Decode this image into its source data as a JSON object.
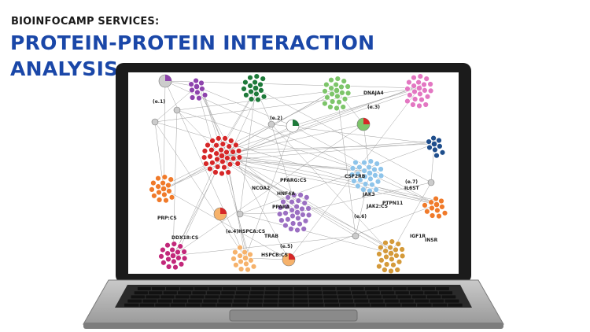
{
  "header": {
    "kicker": "BIOINFOCAMP SERVICES:",
    "title_line1": "PROTEIN-PROTEIN INTERACTION",
    "title_line2": "ANALYSIS"
  },
  "network_labels": {
    "dnaja4": "DNAJA4",
    "e1": "(e.1)",
    "e2": "(e.2)",
    "e3": "(e.3)",
    "e4": "(e.4)",
    "e5": "(e.5)",
    "e6": "(e.6)",
    "e7": "(e.7)",
    "csf2rb": "CSF2RB",
    "ppargc": "PPARG:CS",
    "ncoa2": "NCOA2",
    "hnf4a": "HNF4A",
    "ppara": "PPARA",
    "jak3": "JAK3",
    "jak2": "JAK2:CS",
    "ptpn11": "PTPN11",
    "il6st": "IL6ST",
    "igf1r": "IGF1R",
    "insr": "INSR",
    "trab": "TRAB",
    "hspca": "HSPCA:CS",
    "hspcb": "HSPCB:CS",
    "ddx18": "DDX18:CS",
    "prp": "PRP:CS"
  },
  "colors": {
    "title_blue": "#1a47a8",
    "purple": "#8e44ad",
    "dark_green": "#1e7a3a",
    "light_green": "#7dc56a",
    "pink": "#e377c2",
    "red": "#d62728",
    "orange": "#f07a2a",
    "lavender": "#9b6fc2",
    "light_blue": "#8ec4ea",
    "navy": "#1f4e8c",
    "gold": "#d49a3a",
    "magenta": "#c2287a",
    "peach": "#f6b26b"
  }
}
